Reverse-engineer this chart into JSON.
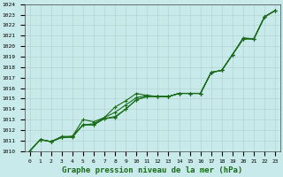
{
  "xlabel": "Graphe pression niveau de la mer (hPa)",
  "bg_color": "#c8eaea",
  "grid_color": "#b4d4d4",
  "line_color": "#1a6b1a",
  "marker": "+",
  "x": [
    0,
    1,
    2,
    3,
    4,
    5,
    6,
    7,
    8,
    9,
    10,
    11,
    12,
    13,
    14,
    15,
    16,
    17,
    18,
    19,
    20,
    21,
    22,
    23
  ],
  "line1": [
    1010.0,
    1011.1,
    1010.9,
    1011.3,
    1011.4,
    1013.0,
    1012.8,
    1013.2,
    1014.0,
    1014.6,
    1015.5,
    1015.2,
    1015.1,
    1015.1,
    1015.4,
    1015.4,
    1015.4,
    1017.4,
    1017.6,
    1019.1,
    1020.8,
    1020.6,
    1022.8,
    1023.4
  ],
  "line2": [
    1010.0,
    1011.1,
    1010.9,
    1011.3,
    1011.4,
    1012.5,
    1012.5,
    1013.2,
    1013.6,
    1014.3,
    1015.0,
    1015.2,
    1015.1,
    1015.1,
    1015.4,
    1015.4,
    1015.4,
    1017.4,
    1017.6,
    1019.1,
    1020.6,
    1020.6,
    1022.8,
    1023.4
  ],
  "line3": [
    1010.0,
    1011.1,
    1010.9,
    1011.3,
    1011.3,
    1012.5,
    1012.5,
    1013.0,
    1013.2,
    1014.0,
    1014.8,
    1015.1,
    1015.1,
    1015.1,
    1015.4,
    1015.4,
    1015.4,
    1017.4,
    1017.6,
    1019.1,
    1020.6,
    1020.6,
    1022.8,
    1023.4
  ],
  "line4": [
    1010.0,
    1011.1,
    1010.9,
    1011.3,
    1011.3,
    1012.5,
    1012.5,
    1013.0,
    1013.2,
    1014.0,
    1014.8,
    1015.1,
    1015.1,
    1015.1,
    1015.4,
    1015.4,
    1015.4,
    1017.4,
    1017.6,
    1019.1,
    1020.6,
    1020.6,
    1022.8,
    1023.4
  ],
  "ylim": [
    1010,
    1024
  ],
  "xlim_min": -0.5,
  "xlim_max": 23.5,
  "yticks": [
    1010,
    1011,
    1012,
    1013,
    1014,
    1015,
    1016,
    1017,
    1018,
    1019,
    1020,
    1021,
    1022,
    1023,
    1024
  ]
}
